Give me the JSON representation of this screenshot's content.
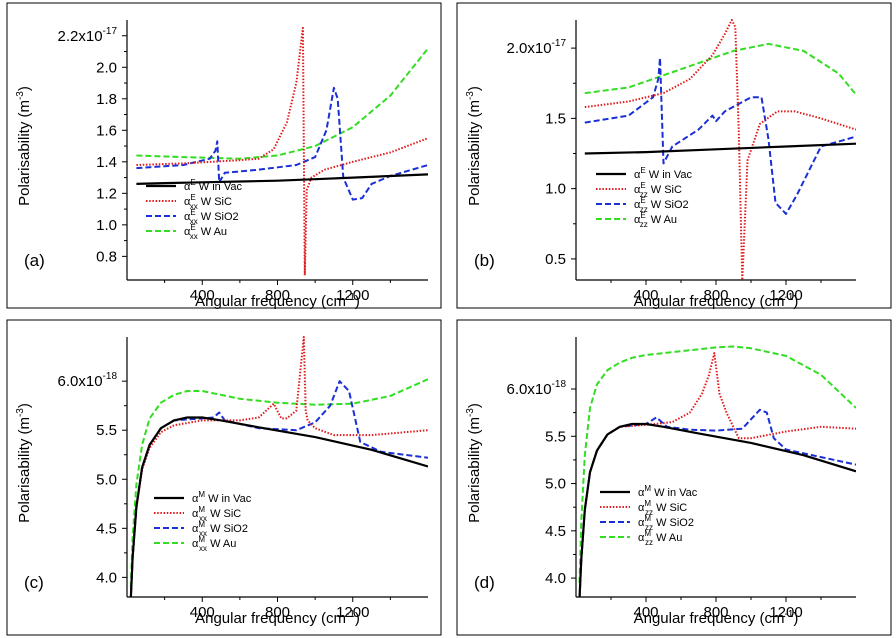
{
  "figure": {
    "panels": [
      {
        "label": "(a)",
        "yticks": [
          "2.2x10",
          "2.0",
          "1.8",
          "1.6",
          "1.4",
          "1.2",
          "1.0",
          "0.8"
        ],
        "ytop_exp": "-17",
        "legend": [
          {
            "sym": "α",
            "sup": "E",
            "sub": "",
            "rest": " W in Vac"
          },
          {
            "sym": "α",
            "sup": "E",
            "sub": "xx",
            "rest": " W SiC"
          },
          {
            "sym": "α",
            "sup": "E",
            "sub": "xx",
            "rest": " W SiO2"
          },
          {
            "sym": "α",
            "sup": "E",
            "sub": "xx",
            "rest": " W Au"
          }
        ]
      },
      {
        "label": "(b)",
        "yticks": [
          "2.0x10",
          "1.5",
          "1.0",
          "0.5"
        ],
        "ytop_exp": "-17",
        "legend": [
          {
            "sym": "α",
            "sup": "E",
            "sub": "",
            "rest": " W in Vac"
          },
          {
            "sym": "α",
            "sup": "E",
            "sub": "zz",
            "rest": " W SiC"
          },
          {
            "sym": "α",
            "sup": "E",
            "sub": "zz",
            "rest": " W SiO2"
          },
          {
            "sym": "α",
            "sup": "E",
            "sub": "zz",
            "rest": " W Au"
          }
        ]
      },
      {
        "label": "(c)",
        "yticks": [
          "6.0x10",
          "5.5",
          "5.0",
          "4.5",
          "4.0"
        ],
        "ytop_exp": "-18",
        "legend": [
          {
            "sym": "α",
            "sup": "M",
            "sub": "",
            "rest": " W in Vac"
          },
          {
            "sym": "α",
            "sup": "M",
            "sub": "xx",
            "rest": " W SiC"
          },
          {
            "sym": "α",
            "sup": "M",
            "sub": "xx",
            "rest": " W SiO2"
          },
          {
            "sym": "α",
            "sup": "M",
            "sub": "xx",
            "rest": " W Au"
          }
        ]
      },
      {
        "label": "(d)",
        "yticks": [
          "6.0x10",
          "5.5",
          "5.0",
          "4.5",
          "4.0"
        ],
        "ytop_exp": "-18",
        "legend": [
          {
            "sym": "α",
            "sup": "M",
            "sub": "",
            "rest": " W in Vac"
          },
          {
            "sym": "α",
            "sup": "M",
            "sub": "zz",
            "rest": " W SiC"
          },
          {
            "sym": "α",
            "sup": "M",
            "sub": "zz",
            "rest": " W SiO2"
          },
          {
            "sym": "α",
            "sup": "M",
            "sub": "zz",
            "rest": " W Au"
          }
        ]
      }
    ],
    "xlabel": "Angular frequency (cm",
    "xlabel_sup": "-1",
    "xlabel_close": ")",
    "ylabel": "Polarisability  (m",
    "ylabel_sup": "-3",
    "ylabel_close": ")",
    "xticks": [
      "400",
      "800",
      "1200"
    ]
  },
  "chart_data": [
    {
      "type": "line",
      "panel": "(a)",
      "title": "",
      "xlabel": "Angular frequency (cm-1)",
      "ylabel": "Polarisability (m-3)",
      "xlim": [
        0,
        1600
      ],
      "ylim": [
        0.65,
        2.3
      ],
      "y_scale_factor": "x10^-17",
      "series": [
        {
          "name": "αE W in Vac",
          "color": "#000000",
          "style": "solid",
          "x": [
            50,
            200,
            400,
            600,
            800,
            1000,
            1200,
            1400,
            1600
          ],
          "y": [
            1.26,
            1.265,
            1.27,
            1.275,
            1.28,
            1.29,
            1.3,
            1.31,
            1.32
          ]
        },
        {
          "name": "αExx W SiC",
          "color": "#e0191b",
          "style": "dotted",
          "x": [
            50,
            300,
            600,
            700,
            780,
            850,
            900,
            925,
            935,
            945,
            955,
            980,
            1050,
            1200,
            1400,
            1600
          ],
          "y": [
            1.38,
            1.39,
            1.41,
            1.42,
            1.48,
            1.65,
            1.9,
            2.15,
            2.25,
            0.68,
            1.22,
            1.3,
            1.35,
            1.4,
            1.46,
            1.55
          ]
        },
        {
          "name": "αExx W SiO2",
          "color": "#1a2fd6",
          "style": "dashed",
          "x": [
            50,
            300,
            440,
            470,
            480,
            490,
            520,
            700,
            900,
            1000,
            1060,
            1100,
            1120,
            1150,
            1200,
            1250,
            1300,
            1400,
            1600
          ],
          "y": [
            1.36,
            1.38,
            1.42,
            1.47,
            1.53,
            1.27,
            1.33,
            1.35,
            1.38,
            1.43,
            1.6,
            1.87,
            1.8,
            1.3,
            1.16,
            1.17,
            1.26,
            1.31,
            1.38
          ]
        },
        {
          "name": "αExx W Au",
          "color": "#33dd22",
          "style": "dashed",
          "x": [
            50,
            300,
            600,
            800,
            1000,
            1200,
            1400,
            1600
          ],
          "y": [
            1.44,
            1.43,
            1.42,
            1.44,
            1.5,
            1.62,
            1.82,
            2.12
          ]
        }
      ]
    },
    {
      "type": "line",
      "panel": "(b)",
      "title": "",
      "xlabel": "Angular frequency (cm-1)",
      "ylabel": "Polarisability (m-3)",
      "xlim": [
        0,
        1600
      ],
      "ylim": [
        0.35,
        2.2
      ],
      "y_scale_factor": "x10^-17",
      "series": [
        {
          "name": "αE W in Vac",
          "color": "#000000",
          "style": "solid",
          "x": [
            50,
            400,
            800,
            1200,
            1600
          ],
          "y": [
            1.25,
            1.26,
            1.28,
            1.3,
            1.32
          ]
        },
        {
          "name": "αEzz W SiC",
          "color": "#e0191b",
          "style": "dotted",
          "x": [
            50,
            300,
            500,
            650,
            780,
            850,
            890,
            910,
            930,
            950,
            980,
            1050,
            1150,
            1250,
            1400,
            1600
          ],
          "y": [
            1.58,
            1.62,
            1.68,
            1.78,
            1.95,
            2.1,
            2.2,
            2.15,
            1.4,
            0.35,
            1.2,
            1.46,
            1.55,
            1.55,
            1.5,
            1.42
          ]
        },
        {
          "name": "αEzz W SiO2",
          "color": "#1a2fd6",
          "style": "dashed",
          "x": [
            50,
            300,
            440,
            470,
            480,
            500,
            550,
            700,
            780,
            800,
            850,
            1000,
            1060,
            1100,
            1140,
            1200,
            1260,
            1400,
            1600
          ],
          "y": [
            1.47,
            1.52,
            1.65,
            1.78,
            1.93,
            1.18,
            1.3,
            1.42,
            1.52,
            1.48,
            1.55,
            1.65,
            1.65,
            1.35,
            0.9,
            0.82,
            0.95,
            1.3,
            1.37
          ]
        },
        {
          "name": "αEzz W Au",
          "color": "#33dd22",
          "style": "dashed",
          "x": [
            50,
            300,
            600,
            900,
            1100,
            1300,
            1500,
            1600
          ],
          "y": [
            1.68,
            1.72,
            1.85,
            1.98,
            2.03,
            1.98,
            1.82,
            1.67
          ]
        }
      ]
    },
    {
      "type": "line",
      "panel": "(c)",
      "title": "",
      "xlabel": "Angular frequency (cm-1)",
      "ylabel": "Polarisability (m-3)",
      "xlim": [
        0,
        1600
      ],
      "ylim": [
        3.8,
        6.45
      ],
      "y_scale_factor": "x10^-18",
      "series": [
        {
          "name": "αM W in Vac",
          "color": "#000000",
          "style": "solid",
          "x": [
            20,
            30,
            50,
            80,
            120,
            180,
            250,
            320,
            400,
            500,
            700,
            1000,
            1300,
            1600
          ],
          "y": [
            3.78,
            4.2,
            4.72,
            5.12,
            5.35,
            5.52,
            5.6,
            5.63,
            5.63,
            5.6,
            5.53,
            5.43,
            5.3,
            5.13
          ]
        },
        {
          "name": "αMxx W SiC",
          "color": "#e0191b",
          "style": "dotted",
          "x": [
            20,
            30,
            50,
            80,
            120,
            180,
            250,
            400,
            600,
            700,
            780,
            820,
            850,
            900,
            940,
            950,
            960,
            1000,
            1100,
            1300,
            1600
          ],
          "y": [
            3.78,
            4.2,
            4.7,
            5.1,
            5.32,
            5.48,
            5.55,
            5.6,
            5.6,
            5.63,
            5.77,
            5.62,
            5.62,
            5.7,
            6.45,
            5.7,
            5.6,
            5.52,
            5.45,
            5.45,
            5.5
          ]
        },
        {
          "name": "αMxx W SiO2",
          "color": "#1a2fd6",
          "style": "dashed",
          "x": [
            20,
            30,
            50,
            80,
            120,
            180,
            250,
            400,
            460,
            490,
            520,
            700,
            900,
            1000,
            1080,
            1130,
            1180,
            1240,
            1350,
            1600
          ],
          "y": [
            3.78,
            4.2,
            4.72,
            5.12,
            5.35,
            5.52,
            5.6,
            5.62,
            5.63,
            5.68,
            5.6,
            5.52,
            5.5,
            5.58,
            5.75,
            6.0,
            5.9,
            5.38,
            5.28,
            5.22
          ]
        },
        {
          "name": "αMxx W Au",
          "color": "#33dd22",
          "style": "dashed",
          "x": [
            20,
            30,
            50,
            80,
            120,
            180,
            250,
            320,
            400,
            500,
            600,
            800,
            1000,
            1200,
            1400,
            1600
          ],
          "y": [
            3.9,
            4.4,
            4.95,
            5.35,
            5.62,
            5.78,
            5.86,
            5.9,
            5.9,
            5.86,
            5.82,
            5.78,
            5.76,
            5.77,
            5.85,
            6.02
          ]
        }
      ]
    },
    {
      "type": "line",
      "panel": "(d)",
      "title": "",
      "xlabel": "Angular frequency (cm-1)",
      "ylabel": "Polarisability (m-3)",
      "xlim": [
        0,
        1600
      ],
      "ylim": [
        3.8,
        6.55
      ],
      "y_scale_factor": "x10^-18",
      "series": [
        {
          "name": "αM W in Vac",
          "color": "#000000",
          "style": "solid",
          "x": [
            20,
            30,
            50,
            80,
            120,
            180,
            250,
            320,
            400,
            500,
            700,
            1000,
            1300,
            1600
          ],
          "y": [
            3.78,
            4.2,
            4.72,
            5.12,
            5.35,
            5.52,
            5.6,
            5.63,
            5.63,
            5.6,
            5.53,
            5.43,
            5.3,
            5.13
          ]
        },
        {
          "name": "αMzz W SiC",
          "color": "#e0191b",
          "style": "dotted",
          "x": [
            20,
            30,
            50,
            80,
            120,
            180,
            250,
            400,
            550,
            650,
            720,
            760,
            790,
            820,
            860,
            930,
            1000,
            1200,
            1400,
            1600
          ],
          "y": [
            3.78,
            4.2,
            4.72,
            5.12,
            5.35,
            5.52,
            5.6,
            5.62,
            5.65,
            5.75,
            5.95,
            6.15,
            6.38,
            5.95,
            5.75,
            5.48,
            5.48,
            5.55,
            5.6,
            5.58
          ]
        },
        {
          "name": "αMzz W SiO2",
          "color": "#1a2fd6",
          "style": "dashed",
          "x": [
            20,
            30,
            50,
            80,
            120,
            180,
            250,
            400,
            460,
            520,
            650,
            800,
            950,
            1050,
            1090,
            1130,
            1200,
            1400,
            1600
          ],
          "y": [
            3.78,
            4.2,
            4.72,
            5.12,
            5.35,
            5.52,
            5.6,
            5.63,
            5.7,
            5.6,
            5.57,
            5.56,
            5.58,
            5.78,
            5.75,
            5.48,
            5.36,
            5.28,
            5.2
          ]
        },
        {
          "name": "αMzz W Au",
          "color": "#33dd22",
          "style": "dashed",
          "x": [
            20,
            30,
            50,
            80,
            120,
            180,
            250,
            320,
            400,
            600,
            800,
            900,
            1000,
            1200,
            1400,
            1600
          ],
          "y": [
            3.95,
            4.6,
            5.3,
            5.8,
            6.05,
            6.2,
            6.28,
            6.33,
            6.36,
            6.4,
            6.44,
            6.45,
            6.43,
            6.35,
            6.15,
            5.8
          ]
        }
      ]
    }
  ]
}
